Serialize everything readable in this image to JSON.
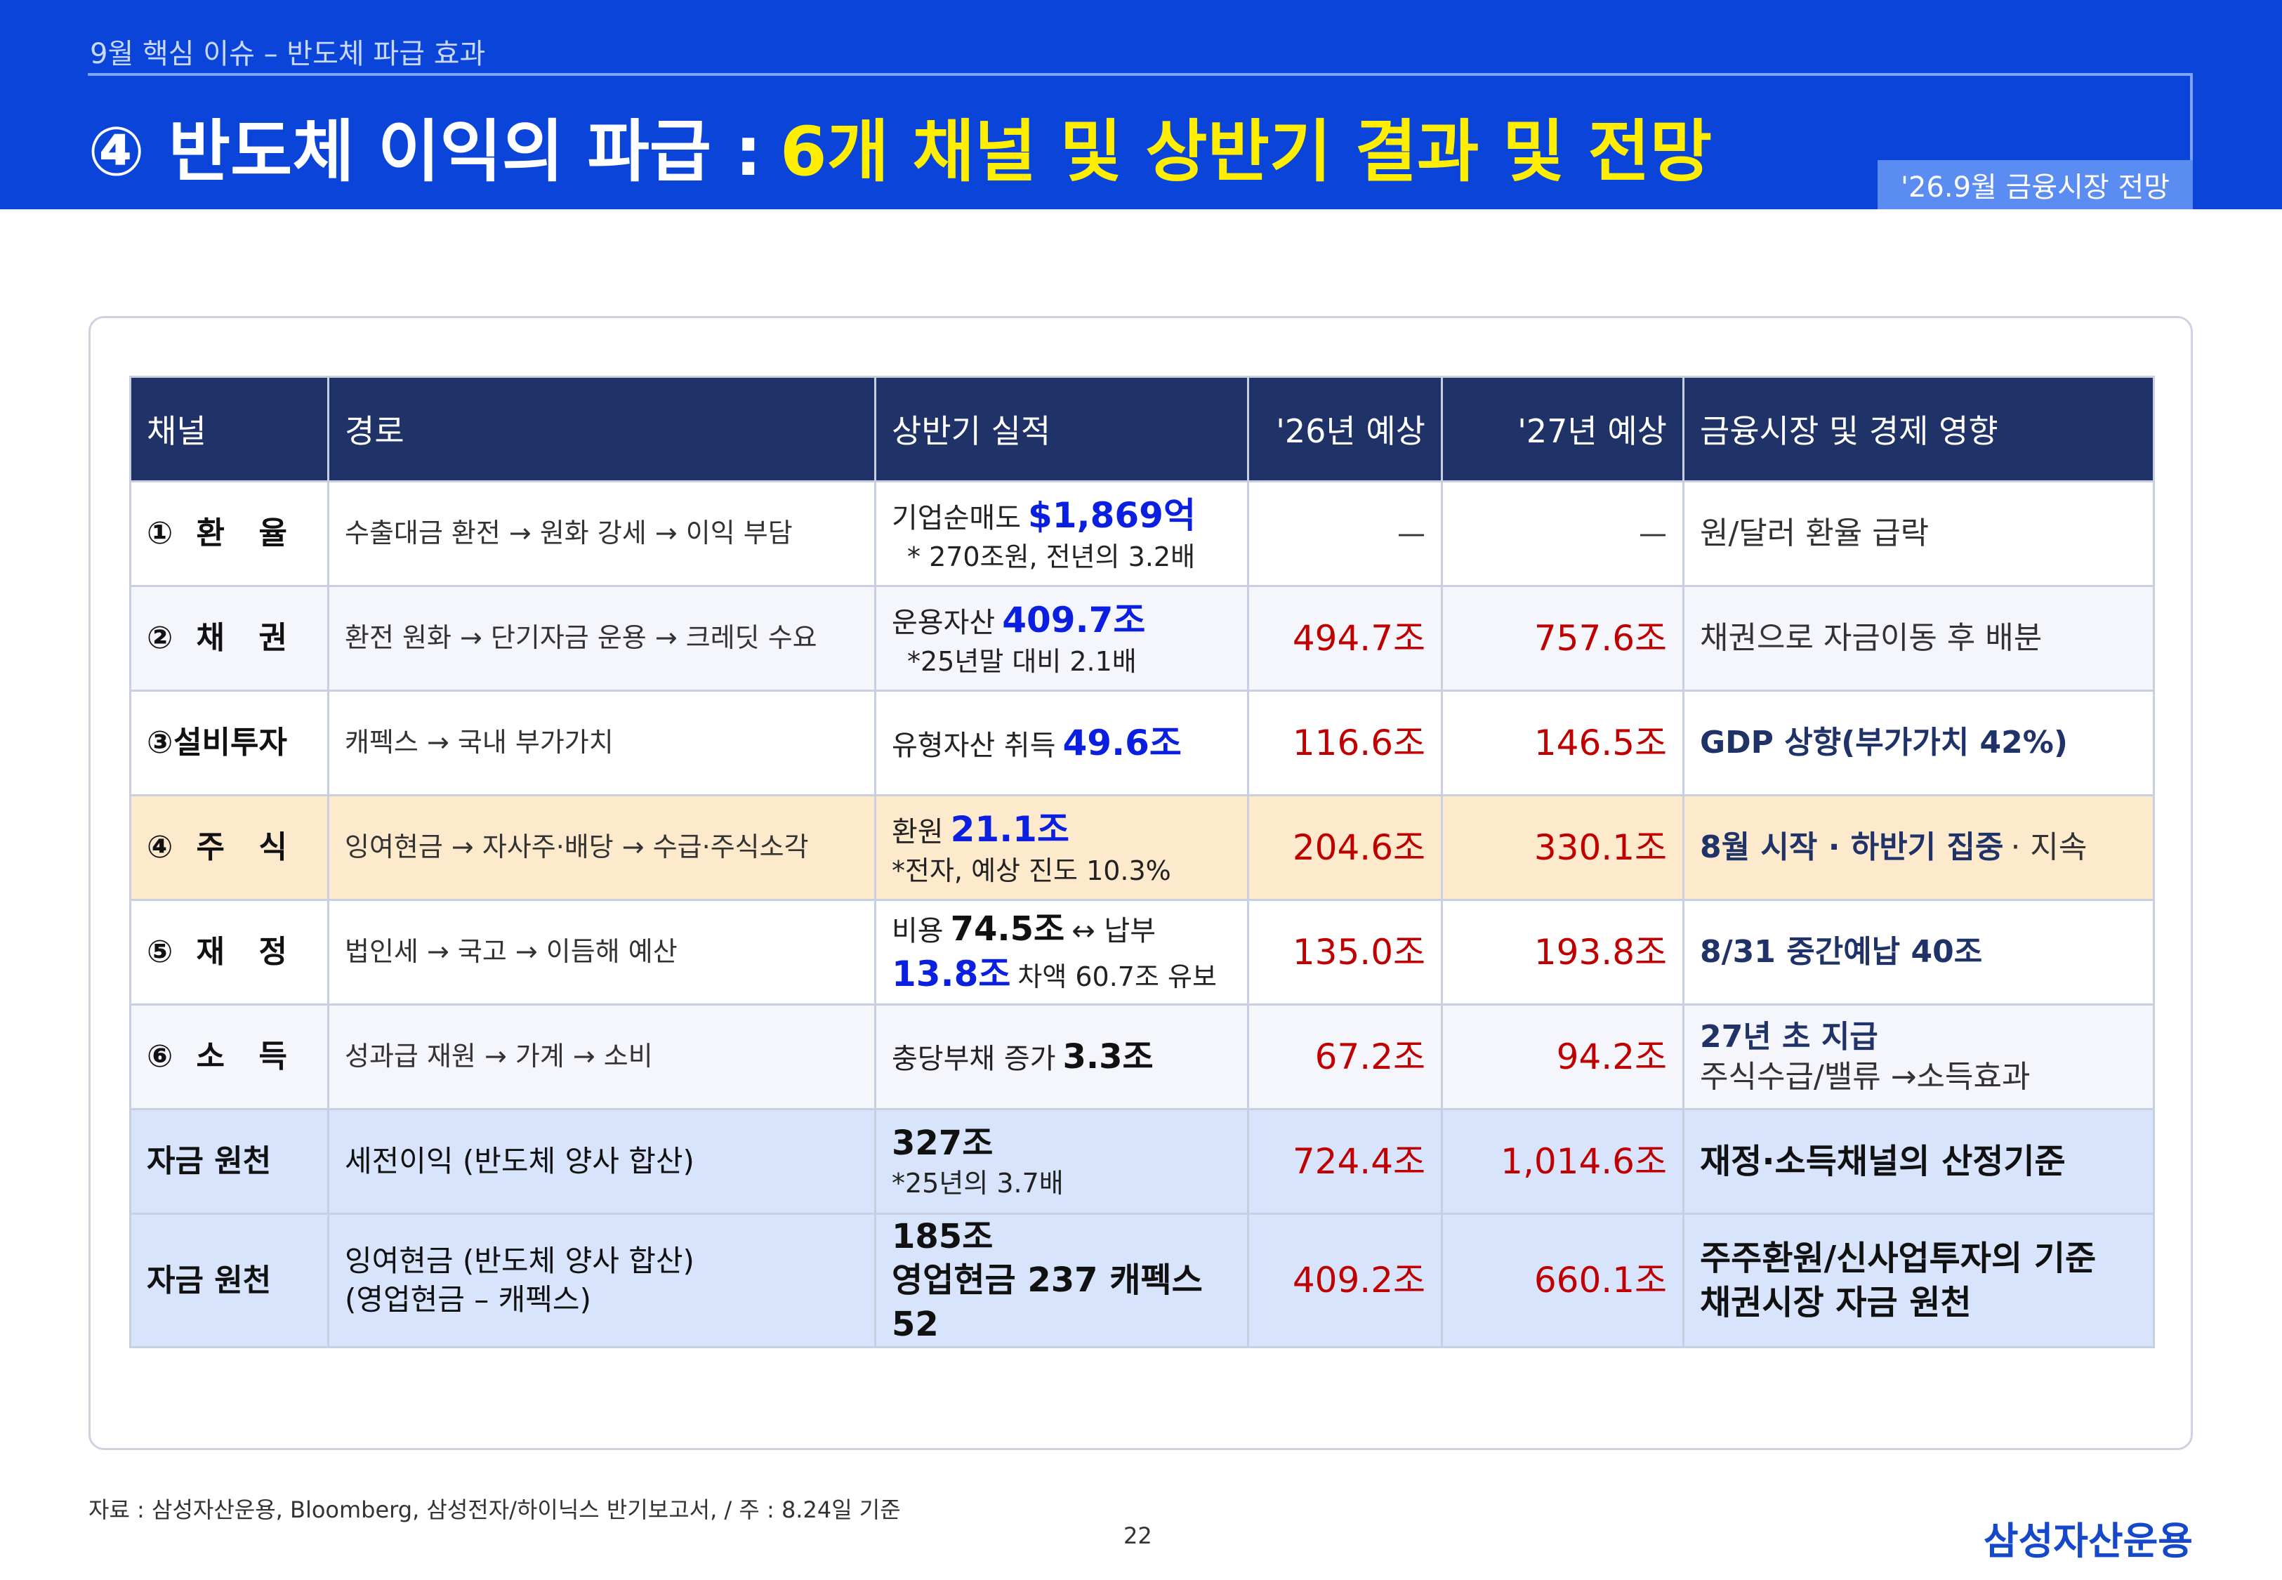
{
  "header": {
    "breadcrumb": "9월 핵심 이슈 – 반도체 파급 효과",
    "title": "④ 반도체 이익의 파급 :",
    "title_highlight": "6개 채널 및 상반기 결과 및 전망",
    "badge": "'26.9월 금융시장 전망"
  },
  "table": {
    "columns": [
      "채널",
      "경로",
      "상반기 실적",
      "'26년 예상",
      "'27년 예상",
      "금융시장 및 경제 영향"
    ],
    "rows": [
      {
        "channel": "①환 율",
        "path": [
          "수출대금 환전 → 원화 강세 → 이익 부담"
        ],
        "result": [
          "기업순매도",
          "$1,869억",
          "* 270조원, 전년의 3.2배"
        ],
        "y26": "—",
        "y27": "—",
        "impact": [
          "원/달러 환율 급락"
        ]
      },
      {
        "channel": "②채 권",
        "path": [
          "환전 원화 → 단기자금 운용 → 크레딧 수요"
        ],
        "result": [
          "운용자산",
          "409.7조",
          "*25년말 대비 2.1배"
        ],
        "y26": "494.7조",
        "y27": "757.6조",
        "impact": [
          "채권으로 자금이동 후 배분"
        ]
      },
      {
        "channel": "③설비투자",
        "path": [
          "캐펙스 → 국내 부가가치"
        ],
        "result": [
          "유형자산 취득",
          "49.6조"
        ],
        "y26": "116.6조",
        "y27": "146.5조",
        "impact": [
          "GDP 상향(부가가치 42%)"
        ]
      },
      {
        "channel": "④주 식",
        "path": [
          "잉여현금 → 자사주·배당 → 수급·주식소각"
        ],
        "result": [
          "환원",
          "21.1조",
          "*전자, 예상 진도 10.3%"
        ],
        "y26": "204.6조",
        "y27": "330.1조",
        "impact": [
          "8월 시작 · 하반기 집중",
          "· 지속"
        ]
      },
      {
        "channel": "⑤재 정",
        "path": [
          "법인세 → 국고 → 이듬해 예산"
        ],
        "result": [
          "비용",
          "74.5조",
          "↔ 납부",
          "13.8조",
          "차액 60.7조 유보"
        ],
        "y26": "135.0조",
        "y27": "193.8조",
        "impact": [
          "8/31 중간예납 40조"
        ]
      },
      {
        "channel": "⑥소 득",
        "path": [
          "성과급 재원 → 가계 → 소비"
        ],
        "result": [
          "충당부채 증가",
          "3.3조"
        ],
        "y26": "67.2조",
        "y27": "94.2조",
        "impact": [
          "27년 초 지급",
          "주식수급/밸류 →소득효과"
        ]
      },
      {
        "channel": "자금 원천",
        "path": [
          "세전이익 (반도체 양사 합산)"
        ],
        "result": [
          "327조",
          "*25년의 3.7배"
        ],
        "y26": "724.4조",
        "y27": "1,014.6조",
        "impact": [
          "재정·소득채널의 산정기준"
        ]
      },
      {
        "channel": "자금 원천",
        "path": [
          "잉여현금 (반도체 양사 합산)",
          "(영업현금 – 캐펙스)"
        ],
        "result": [
          "185조",
          "영업현금 237  캐펙스 52"
        ],
        "y26": "409.2조",
        "y27": "660.1조",
        "impact": [
          "주주환원/신사업투자의 기준",
          "채권시장 자금 원천"
        ]
      }
    ]
  },
  "footer": {
    "source": "자료 : 삼성자산운용, Bloomberg, 삼성전자/하이닉스 반기보고서, / 주 : 8.24일 기준",
    "page": "22",
    "logo": "삼성자산운용"
  }
}
